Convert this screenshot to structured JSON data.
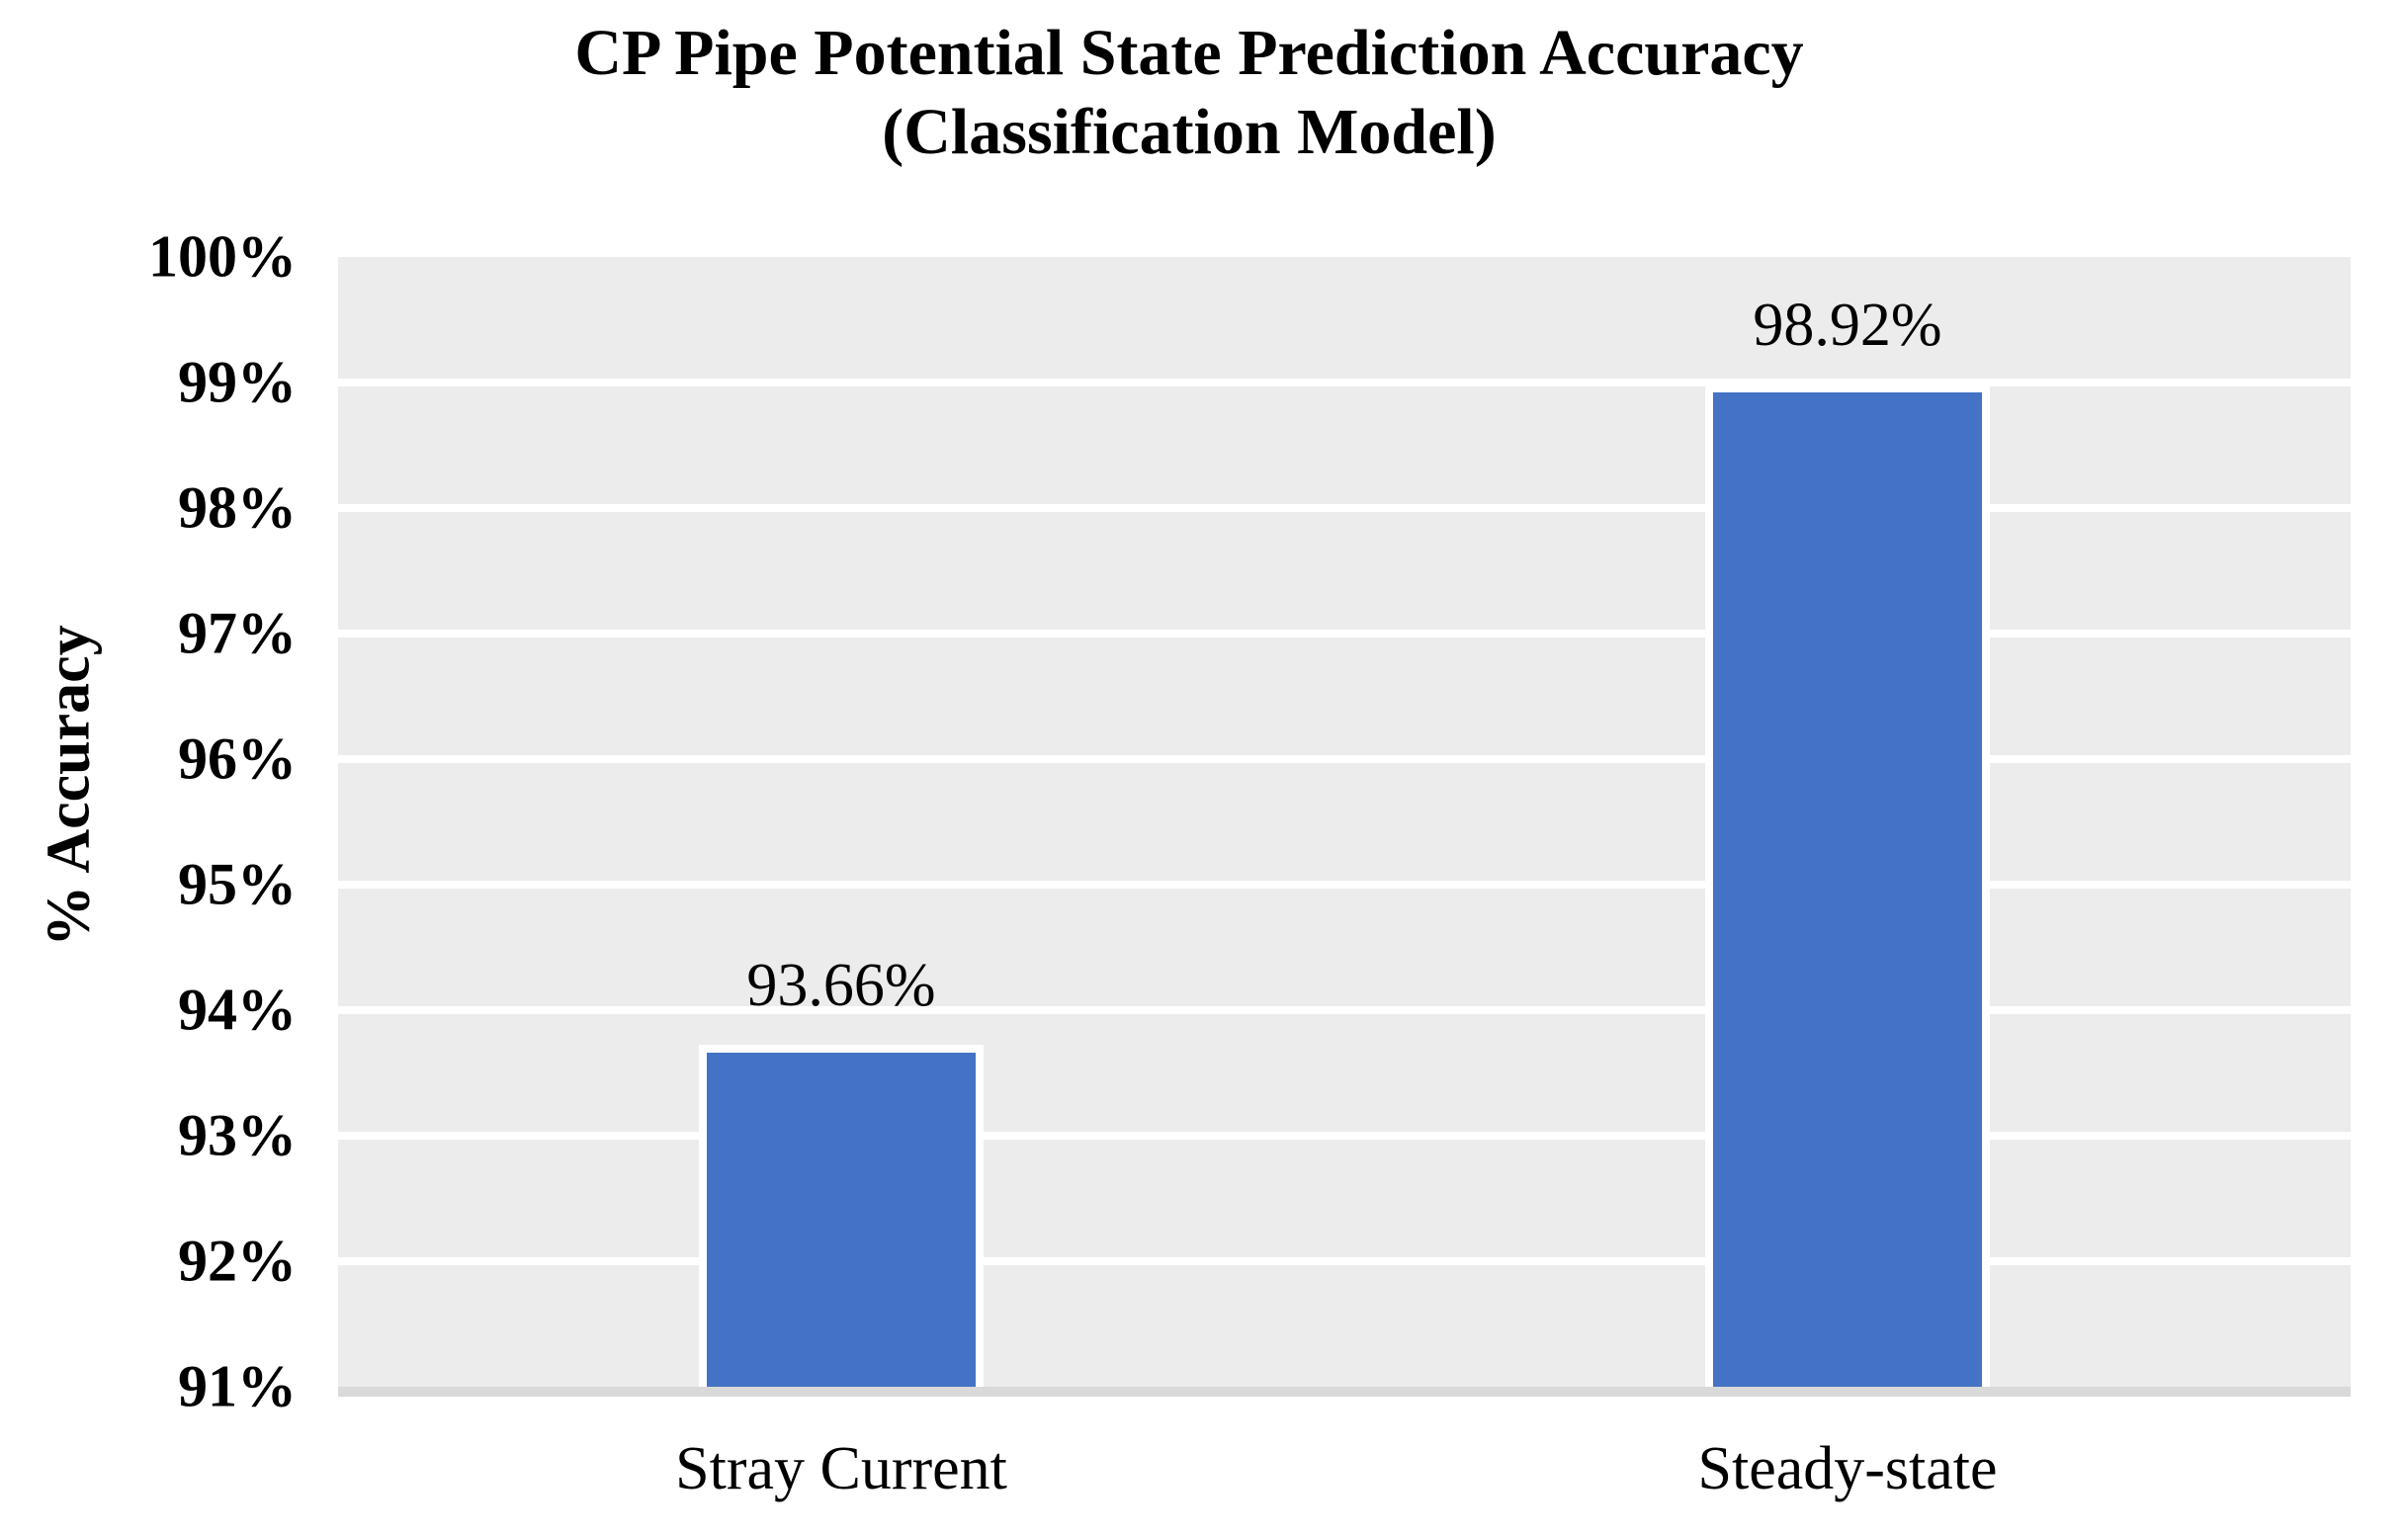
{
  "chart_data": {
    "type": "bar",
    "title_line1": "CP Pipe Potential State Prediction Accuracy",
    "title_line2": "(Classification Model)",
    "categories": [
      "Stray Current",
      "Steady-state"
    ],
    "values": [
      93.66,
      98.92
    ],
    "data_labels": [
      "93.66%",
      "98.92%"
    ],
    "xlabel": "",
    "ylabel": "% Accuracy",
    "ylim": [
      91,
      100
    ],
    "ytick_step": 1,
    "ytick_labels": [
      "100%",
      "99%",
      "98%",
      "97%",
      "96%",
      "95%",
      "94%",
      "93%",
      "92%",
      "91%"
    ],
    "grid": true,
    "legend_position": "none",
    "colors": {
      "bar_fill": "#4472C4",
      "bar_border": "#FFFFFF",
      "plot_background": "#ECECEC",
      "gridline": "#FFFFFF",
      "axis_line": "#D9D9D9",
      "text": "#000000",
      "chart_background": "#FFFFFF"
    }
  }
}
